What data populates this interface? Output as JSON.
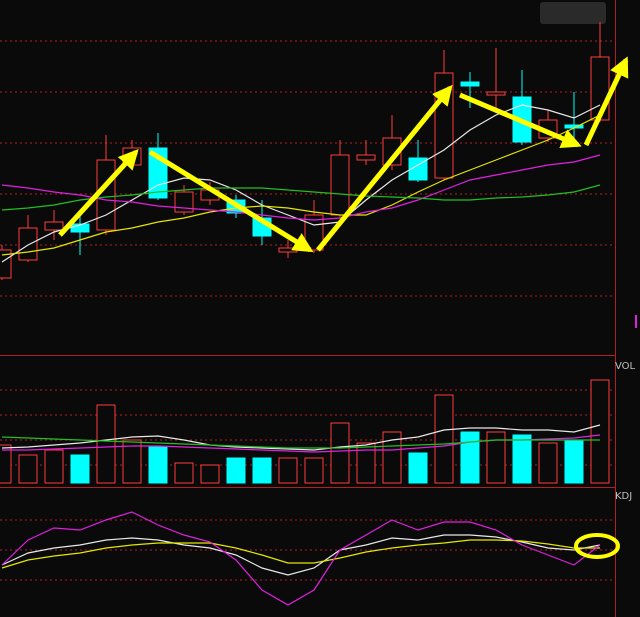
{
  "chart_data": [
    {
      "type": "candlestick",
      "open": [
        77,
        95,
        125,
        131,
        125,
        190,
        207,
        143,
        155,
        155,
        137,
        103,
        105,
        140,
        195,
        190,
        197,
        177,
        273,
        260,
        258,
        217,
        230,
        235
      ],
      "close": [
        105,
        127,
        133,
        123,
        195,
        207,
        157,
        163,
        165,
        142,
        119,
        107,
        140,
        200,
        200,
        217,
        175,
        282,
        269,
        263,
        213,
        235,
        227,
        298
      ],
      "high": [
        110,
        140,
        145,
        145,
        220,
        215,
        222,
        170,
        173,
        160,
        155,
        115,
        155,
        215,
        215,
        240,
        215,
        305,
        283,
        307,
        285,
        245,
        263,
        333
      ],
      "low": [
        75,
        93,
        115,
        100,
        120,
        185,
        155,
        140,
        150,
        137,
        110,
        97,
        102,
        137,
        190,
        185,
        173,
        175,
        247,
        245,
        210,
        213,
        215,
        233
      ],
      "up_color": "#ff3c3c",
      "down_color": "#00ffff",
      "ylim": [
        0,
        355
      ],
      "yticks": [
        59,
        110,
        161,
        212,
        263,
        314
      ],
      "grid": true,
      "series": [
        {
          "color": "#e8e8e8",
          "values": [
            93,
            110,
            123,
            130,
            140,
            155,
            170,
            177,
            175,
            165,
            150,
            140,
            130,
            133,
            155,
            175,
            190,
            205,
            225,
            240,
            250,
            245,
            237,
            250
          ]
        },
        {
          "color": "#e6e600",
          "values": [
            100,
            103,
            107,
            115,
            123,
            127,
            133,
            137,
            143,
            147,
            149,
            147,
            143,
            140,
            140,
            150,
            163,
            175,
            185,
            195,
            205,
            215,
            227,
            240
          ]
        },
        {
          "color": "#e020e0",
          "values": [
            170,
            167,
            163,
            160,
            155,
            153,
            149,
            147,
            145,
            143,
            140,
            137,
            135,
            137,
            143,
            147,
            155,
            165,
            175,
            180,
            185,
            190,
            193,
            200
          ]
        },
        {
          "color": "#20c020",
          "values": [
            145,
            147,
            150,
            155,
            158,
            160,
            163,
            165,
            167,
            167,
            167,
            165,
            163,
            161,
            159,
            158,
            157,
            155,
            155,
            157,
            158,
            160,
            163,
            170
          ]
        }
      ]
    },
    {
      "type": "bar",
      "title": "VOL",
      "values": [
        38,
        28,
        33,
        28,
        78,
        43,
        36,
        20,
        18,
        25,
        25,
        25,
        25,
        60,
        40,
        51,
        30,
        88,
        51,
        51,
        48,
        40,
        43,
        103
      ],
      "ylim": [
        0,
        125
      ],
      "yticks": [
        18,
        43,
        68,
        93
      ],
      "grid": true,
      "series": [
        {
          "color": "#e8e8e8",
          "values": [
            35,
            36,
            38,
            40,
            43,
            46,
            47,
            43,
            38,
            36,
            35,
            34,
            33,
            36,
            38,
            43,
            46,
            53,
            55,
            55,
            53,
            53,
            51,
            58
          ]
        },
        {
          "color": "#e020e0",
          "values": [
            33,
            33,
            34,
            35,
            36,
            37,
            37,
            36,
            35,
            34,
            33,
            32,
            31,
            32,
            33,
            33,
            35,
            37,
            41,
            43,
            43,
            44,
            45,
            48
          ]
        },
        {
          "color": "#20c020",
          "values": [
            46,
            45,
            44,
            43,
            42,
            41,
            40,
            39,
            38,
            37,
            36,
            35,
            35,
            35,
            36,
            37,
            38,
            39,
            41,
            43,
            43,
            43,
            43,
            43
          ]
        }
      ]
    },
    {
      "type": "line",
      "title": "KDJ",
      "ylim": [
        0,
        120
      ],
      "yticks": [
        30,
        60,
        90
      ],
      "grid": true,
      "series": [
        {
          "color": "#e8e8e8",
          "values": [
            45,
            57,
            62,
            65,
            70,
            72,
            70,
            65,
            62,
            55,
            42,
            35,
            42,
            60,
            65,
            72,
            70,
            75,
            75,
            73,
            68,
            62,
            60,
            65
          ]
        },
        {
          "color": "#e6e600",
          "values": [
            42,
            50,
            54,
            57,
            62,
            65,
            67,
            67,
            67,
            62,
            55,
            47,
            47,
            52,
            58,
            62,
            65,
            67,
            70,
            70,
            69,
            66,
            62,
            62
          ]
        },
        {
          "color": "#e020e0",
          "values": [
            45,
            70,
            82,
            80,
            90,
            98,
            85,
            75,
            68,
            50,
            20,
            5,
            20,
            60,
            75,
            90,
            80,
            88,
            88,
            80,
            65,
            55,
            45,
            65
          ]
        }
      ]
    }
  ]
}
